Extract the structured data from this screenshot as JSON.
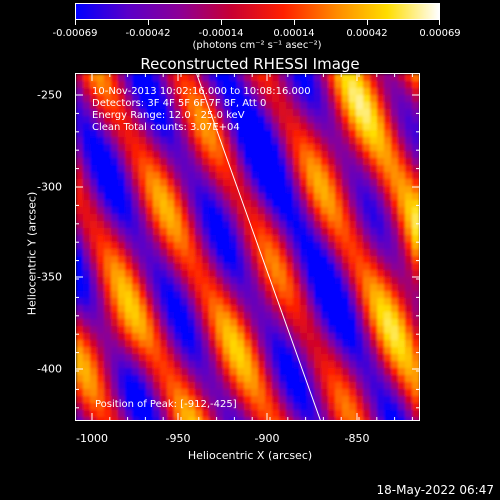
{
  "colorbar": {
    "ticks": [
      "-0.00069",
      "-0.00042",
      "-0.00014",
      "0.00014",
      "0.00042",
      "0.00069"
    ],
    "units": "(photons cm⁻² s⁻¹ asec⁻²)",
    "colors": [
      "#0000ff",
      "#5a00c8",
      "#8c0096",
      "#c80032",
      "#ff2000",
      "#ff8800",
      "#ffdd00",
      "#ffffff"
    ]
  },
  "title": "Reconstructed RHESSI Image",
  "annotations": {
    "time_range": "10-Nov-2013 10:02:16.000 to 10:08:16.000",
    "detectors": "Detectors: 3F 4F 5F 6F 7F 8F, Att 0",
    "energy": "Energy Range: 12.0 - 25.0 keV",
    "method": "Clean     Total counts: 3.07E+04",
    "peak": "Position of Peak: [-912,-425]"
  },
  "x_axis": {
    "label": "Heliocentric X (arcsec)",
    "ticks": [
      "-1000",
      "-950",
      "-900",
      "-850"
    ]
  },
  "y_axis": {
    "label": "Heliocentric Y (arcsec)",
    "ticks": [
      "-250",
      "-300",
      "-350",
      "-400"
    ]
  },
  "datestamp": "18-May-2022 06:47"
}
